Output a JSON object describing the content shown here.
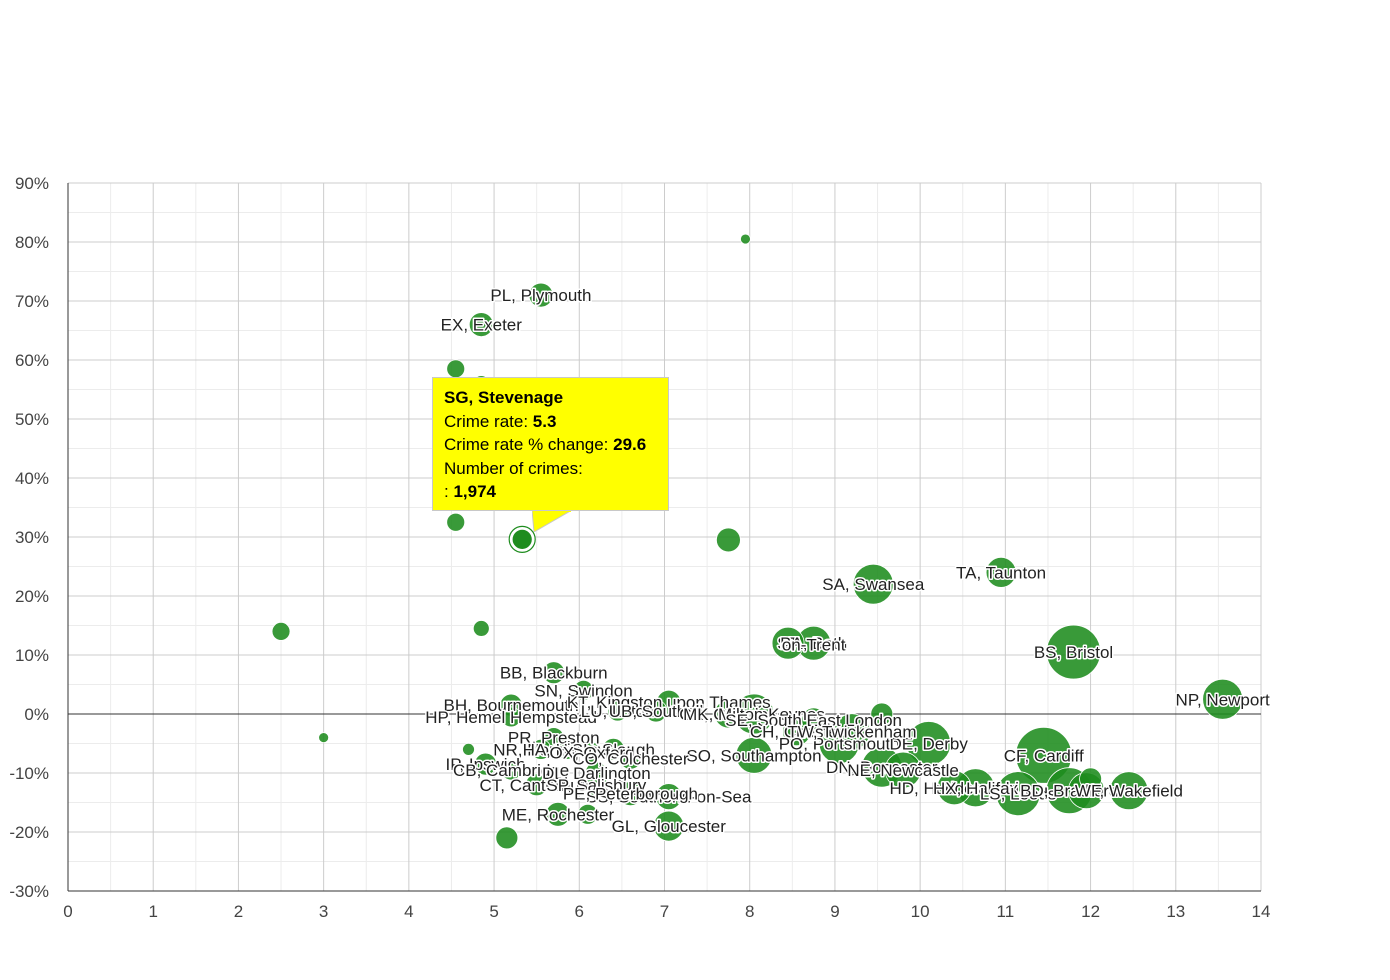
{
  "chart_data": {
    "type": "scatter",
    "title": "",
    "xlabel": "",
    "ylabel": "",
    "xlim": [
      0,
      14
    ],
    "ylim": [
      -30,
      90
    ],
    "x_ticks": [
      "0",
      "1",
      "2",
      "3",
      "4",
      "5",
      "6",
      "7",
      "8",
      "9",
      "10",
      "11",
      "12",
      "13",
      "14"
    ],
    "y_ticks": [
      "-30%",
      "-20%",
      "-10%",
      "0%",
      "10%",
      "20%",
      "30%",
      "40%",
      "50%",
      "60%",
      "70%",
      "80%",
      "90%"
    ],
    "grid": true,
    "bubble_color": "#1e8c1e",
    "points": [
      {
        "label": "PL, Plymouth",
        "x": 5.55,
        "y": 71,
        "r": 12
      },
      {
        "label": "EX, Exeter",
        "x": 4.85,
        "y": 66,
        "r": 12
      },
      {
        "label": "",
        "x": 7.95,
        "y": 80.5,
        "r": 5
      },
      {
        "label": "",
        "x": 4.55,
        "y": 58.5,
        "r": 9
      },
      {
        "label": "",
        "x": 4.85,
        "y": 56,
        "r": 8
      },
      {
        "label": "",
        "x": 4.55,
        "y": 32.5,
        "r": 9
      },
      {
        "label": "SG, Stevenage",
        "x": 5.33,
        "y": 29.6,
        "r": 10,
        "highlight": true
      },
      {
        "label": "",
        "x": 7.75,
        "y": 29.5,
        "r": 12
      },
      {
        "label": "",
        "x": 2.5,
        "y": 14,
        "r": 9
      },
      {
        "label": "",
        "x": 4.85,
        "y": 14.5,
        "r": 8
      },
      {
        "label": "",
        "x": 3.0,
        "y": -4,
        "r": 5
      },
      {
        "label": "",
        "x": 4.7,
        "y": -6,
        "r": 6
      },
      {
        "label": "SA, Swansea",
        "x": 9.45,
        "y": 22,
        "r": 20
      },
      {
        "label": "TA, Taunton",
        "x": 10.95,
        "y": 24,
        "r": 15
      },
      {
        "label": "BS, Bristol",
        "x": 11.8,
        "y": 10.5,
        "r": 27
      },
      {
        "label": "NP, Newport",
        "x": 13.55,
        "y": 2.5,
        "r": 20
      },
      {
        "label": "ST",
        "x": 8.45,
        "y": 12,
        "r": 16
      },
      {
        "label": "BA, Bath",
        "x": 8.75,
        "y": 12,
        "r": 17
      },
      {
        "label": "on-Trent",
        "x": 8.75,
        "y": 11.8,
        "r": 1
      },
      {
        "label": "BB, Blackburn",
        "x": 5.7,
        "y": 7,
        "r": 11
      },
      {
        "label": "SN, Swindon",
        "x": 6.05,
        "y": 4,
        "r": 10
      },
      {
        "label": "BH, Bournemouth",
        "x": 5.2,
        "y": 1.5,
        "r": 11
      },
      {
        "label": "HP, Hemel Hempstead",
        "x": 5.2,
        "y": -0.5,
        "r": 10
      },
      {
        "label": "KT, Kingston upon Thames",
        "x": 7.05,
        "y": 2,
        "r": 12
      },
      {
        "label": "LU, Luton",
        "x": 6.45,
        "y": 0.5,
        "r": 10
      },
      {
        "label": "UB, Southall",
        "x": 6.9,
        "y": 0.5,
        "r": 11
      },
      {
        "label": "CR, Croydon",
        "x": 7.75,
        "y": 0,
        "r": 14
      },
      {
        "label": "MK, Milton Keynes",
        "x": 8.05,
        "y": 0,
        "r": 20
      },
      {
        "label": "SE, South East London",
        "x": 8.75,
        "y": -1,
        "r": 12
      },
      {
        "label": "CH, Chester",
        "x": 8.55,
        "y": -3,
        "r": 14
      },
      {
        "label": "PO, Portsmouth",
        "x": 9.05,
        "y": -5,
        "r": 20
      },
      {
        "label": "DE, Derby",
        "x": 10.1,
        "y": -5,
        "r": 22
      },
      {
        "label": "TW, Twickenham",
        "x": 9.2,
        "y": -3,
        "r": 18
      },
      {
        "label": "",
        "x": 9.55,
        "y": 0,
        "r": 11
      },
      {
        "label": "SO, Southampton",
        "x": 8.05,
        "y": -7,
        "r": 18
      },
      {
        "label": "PR, Preston",
        "x": 5.7,
        "y": -4,
        "r": 10
      },
      {
        "label": "NR, Norwich",
        "x": 5.55,
        "y": -6,
        "r": 10
      },
      {
        "label": "HA, Harrow",
        "x": 5.85,
        "y": -6,
        "r": 10
      },
      {
        "label": "SL, Slough",
        "x": 6.4,
        "y": -6,
        "r": 11
      },
      {
        "label": "OX, Oxford",
        "x": 6.15,
        "y": -6.5,
        "r": 10
      },
      {
        "label": "CO, Colchester",
        "x": 6.6,
        "y": -7.5,
        "r": 11
      },
      {
        "label": "IP, Ipswich",
        "x": 4.9,
        "y": -8.5,
        "r": 11
      },
      {
        "label": "CB, Cambridge",
        "x": 5.2,
        "y": -9.5,
        "r": 10
      },
      {
        "label": "DL, Darlington",
        "x": 6.2,
        "y": -10,
        "r": 11
      },
      {
        "label": "CT, Canterbury",
        "x": 5.5,
        "y": -12,
        "r": 11
      },
      {
        "label": "SP, Salisbury",
        "x": 6.2,
        "y": -12,
        "r": 11
      },
      {
        "label": "SS, Southend-on-Sea",
        "x": 7.05,
        "y": -14,
        "r": 13
      },
      {
        "label": "PE, Peterborough",
        "x": 6.6,
        "y": -13.5,
        "r": 12
      },
      {
        "label": "ME, Rochester",
        "x": 5.75,
        "y": -17,
        "r": 12
      },
      {
        "label": "GL, Gloucester",
        "x": 7.05,
        "y": -19,
        "r": 15
      },
      {
        "label": "",
        "x": 5.15,
        "y": -21,
        "r": 11
      },
      {
        "label": "",
        "x": 6.1,
        "y": -17,
        "r": 10
      },
      {
        "label": "DN, Doncaster",
        "x": 9.55,
        "y": -9,
        "r": 20
      },
      {
        "label": "NE, Newcastle",
        "x": 9.8,
        "y": -9.5,
        "r": 18
      },
      {
        "label": "HD, Huddersfield",
        "x": 10.4,
        "y": -12.5,
        "r": 17
      },
      {
        "label": "HX, Halifax",
        "x": 10.65,
        "y": -12.5,
        "r": 19
      },
      {
        "label": "CF, Cardiff",
        "x": 11.45,
        "y": -7,
        "r": 28
      },
      {
        "label": "LS, Leeds",
        "x": 11.15,
        "y": -13.5,
        "r": 22
      },
      {
        "label": "BD, Bradford",
        "x": 11.75,
        "y": -13,
        "r": 23
      },
      {
        "label": "",
        "x": 11.95,
        "y": -13,
        "r": 18
      },
      {
        "label": "",
        "x": 12.0,
        "y": -11,
        "r": 11
      },
      {
        "label": "WF, Wakefield",
        "x": 12.45,
        "y": -13,
        "r": 19
      }
    ],
    "tooltip": {
      "title": "SG, Stevenage",
      "line1_label": "Crime rate: ",
      "line1_value": "5.3",
      "line2_label": "Crime rate % change: ",
      "line2_value": "29.6",
      "line3_label": "Number of crimes:",
      "line4_label": ": ",
      "line4_value": "1,974"
    }
  }
}
